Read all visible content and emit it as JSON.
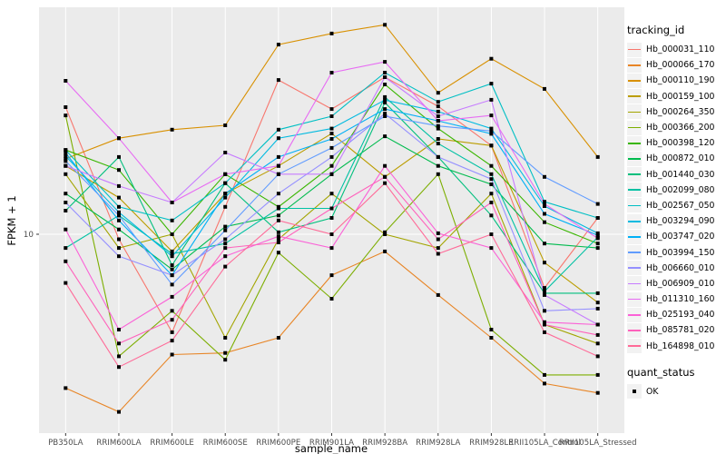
{
  "figure": {
    "xlabel": "sample_name",
    "ylabel": "FPKM + 1",
    "legend_title": "tracking_id",
    "quant_legend_title": "quant_status",
    "quant_legend_item": "OK"
  },
  "chart_data": {
    "type": "line",
    "title": "",
    "xlabel": "sample_name",
    "ylabel": "FPKM + 1",
    "y_scale": "log10",
    "ylim": [
      1.33,
      100
    ],
    "y_ticks": [
      10
    ],
    "y_tick_labels": [
      "10"
    ],
    "grid": true,
    "panel_bg": "#EBEBEB",
    "grid_color": "#FFFFFF",
    "point_color": "#000000",
    "tick_label_color": "#4D4D4D",
    "legend_position": "right",
    "legend_key_bg": "#F2F2F2",
    "quant_status": {
      "label": "OK",
      "marker": "black-square"
    },
    "categories": [
      "PB350LA",
      "RRIM600LA",
      "RRIM600LE",
      "RRIM600SE",
      "RRIM600PE",
      "RRIM901LA",
      "RRIM928BA",
      "RRIM928LA",
      "RRIM928LE",
      "RRII105LA_Control",
      "RRII105LA_Stressed"
    ],
    "series": [
      {
        "name": "Hb_000031_110",
        "color": "#F8766D",
        "values": [
          36.3,
          9.5,
          3.7,
          13.2,
          47.8,
          35.6,
          49.2,
          36.6,
          24.6,
          5.8,
          11.8
        ]
      },
      {
        "name": "Hb_000066_170",
        "color": "#E88526",
        "values": [
          2.1,
          1.65,
          2.95,
          3.0,
          3.5,
          6.6,
          8.4,
          5.4,
          3.5,
          2.2,
          2.0
        ]
      },
      {
        "name": "Hb_000110_190",
        "color": "#D89000",
        "values": [
          21.5,
          26.5,
          28.9,
          30.2,
          68.5,
          76.6,
          83.7,
          42.0,
          59.3,
          43.7,
          21.9
        ]
      },
      {
        "name": "Hb_000159_100",
        "color": "#BB9D00",
        "values": [
          20.0,
          14.5,
          8.4,
          15.1,
          20.0,
          27.8,
          17.9,
          26.3,
          24.6,
          7.5,
          5.0
        ]
      },
      {
        "name": "Hb_000264_350",
        "color": "#A3A500",
        "values": [
          18.4,
          8.7,
          10.0,
          3.5,
          9.5,
          15.1,
          10.0,
          8.7,
          15.1,
          4.0,
          3.3
        ]
      },
      {
        "name": "Hb_000366_200",
        "color": "#7CAE00",
        "values": [
          33.4,
          2.9,
          4.6,
          2.8,
          8.3,
          5.2,
          10.2,
          18.4,
          3.8,
          2.4,
          2.4
        ]
      },
      {
        "name": "Hb_000398_120",
        "color": "#39B600",
        "values": [
          23.5,
          19.2,
          10.0,
          18.4,
          13.2,
          20.0,
          45.7,
          29.2,
          20.0,
          11.3,
          9.1
        ]
      },
      {
        "name": "Hb_000872_010",
        "color": "#00BB4E",
        "values": [
          15.1,
          10.5,
          7.0,
          10.8,
          12.1,
          18.4,
          27.0,
          20.0,
          16.6,
          9.1,
          8.7
        ]
      },
      {
        "name": "Hb_001440_030",
        "color": "#00BF7D",
        "values": [
          12.7,
          21.9,
          7.3,
          16.8,
          10.2,
          11.8,
          38.0,
          21.9,
          12.1,
          5.5,
          5.5
        ]
      },
      {
        "name": "Hb_002099_080",
        "color": "#00C1A3",
        "values": [
          8.7,
          12.1,
          8.2,
          9.1,
          13.0,
          13.0,
          40.2,
          25.1,
          18.4,
          5.6,
          9.7
        ]
      },
      {
        "name": "Hb_002567_050",
        "color": "#00BFC4",
        "values": [
          23.5,
          13.2,
          11.5,
          16.8,
          28.9,
          33.1,
          51.5,
          38.3,
          46.1,
          13.9,
          11.8
        ]
      },
      {
        "name": "Hb_003294_090",
        "color": "#00BAE0",
        "values": [
          22.1,
          12.5,
          8.0,
          14.5,
          26.5,
          29.2,
          39.0,
          34.7,
          29.2,
          13.3,
          10.1
        ]
      },
      {
        "name": "Hb_003747_020",
        "color": "#00B0F6",
        "values": [
          22.8,
          11.5,
          6.6,
          15.1,
          21.9,
          26.3,
          35.6,
          31.6,
          27.7,
          12.3,
          9.9
        ]
      },
      {
        "name": "Hb_003994_150",
        "color": "#619CFF",
        "values": [
          21.0,
          12.1,
          6.0,
          10.4,
          18.4,
          24.0,
          33.1,
          30.0,
          28.5,
          17.9,
          13.6
        ]
      },
      {
        "name": "Hb_006660_010",
        "color": "#9590FF",
        "values": [
          13.8,
          8.0,
          6.6,
          9.5,
          15.1,
          21.9,
          34.0,
          21.9,
          17.5,
          4.6,
          4.7
        ]
      },
      {
        "name": "Hb_006909_010",
        "color": "#C77CFF",
        "values": [
          20.0,
          16.3,
          13.8,
          22.9,
          18.4,
          18.4,
          49.2,
          33.1,
          39.1,
          5.4,
          4.0
        ]
      },
      {
        "name": "Hb_011310_160",
        "color": "#E76BF3",
        "values": [
          47.4,
          26.5,
          13.8,
          18.4,
          20.0,
          51.5,
          57.5,
          31.6,
          33.4,
          13.6,
          9.6
        ]
      },
      {
        "name": "Hb_025193_040",
        "color": "#FB61D7",
        "values": [
          10.5,
          3.8,
          5.3,
          8.0,
          9.8,
          8.7,
          20.0,
          10.1,
          8.7,
          4.1,
          4.0
        ]
      },
      {
        "name": "Hb_085781_020",
        "color": "#FF62BC",
        "values": [
          7.6,
          3.3,
          4.2,
          8.7,
          9.2,
          13.0,
          17.9,
          9.5,
          13.8,
          4.0,
          3.6
        ]
      },
      {
        "name": "Hb_164898_010",
        "color": "#FF6A98",
        "values": [
          6.1,
          2.6,
          3.4,
          7.2,
          11.5,
          10.0,
          16.8,
          8.2,
          10.0,
          3.7,
          2.9
        ]
      }
    ]
  }
}
